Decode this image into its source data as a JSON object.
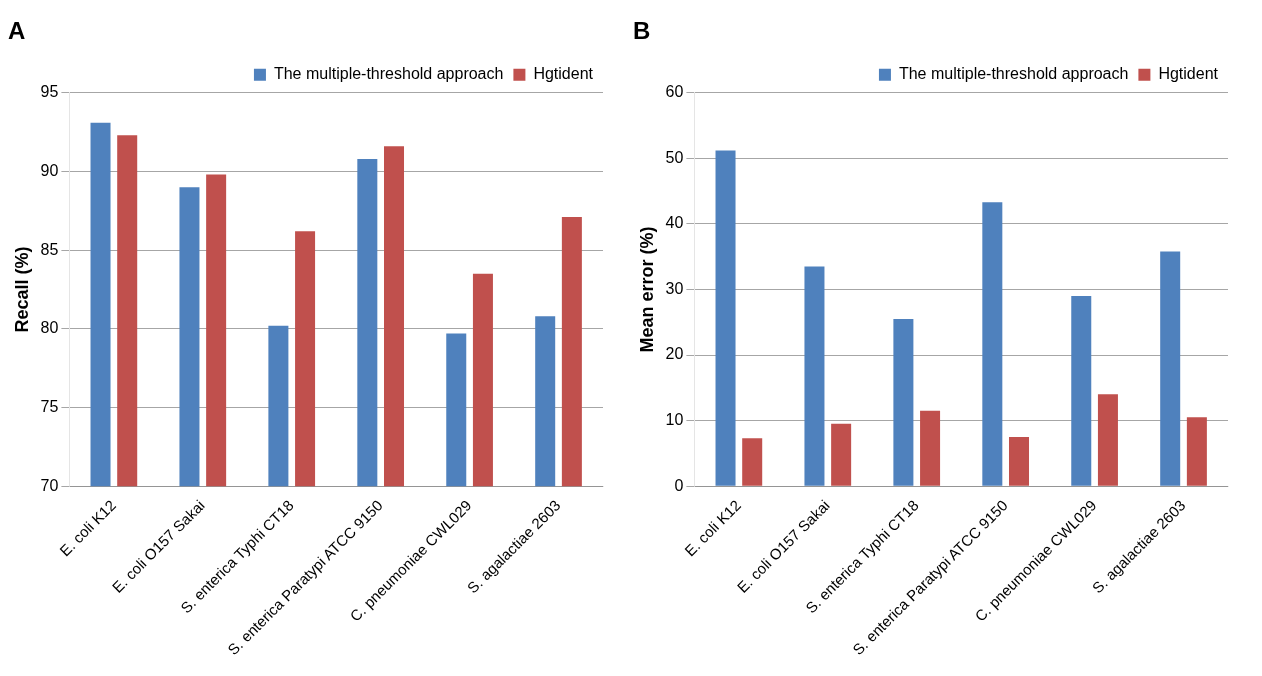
{
  "chart_data": [
    {
      "type": "bar",
      "title": "A",
      "ylabel": "Recall (%)",
      "categories": [
        "E. coli K12",
        "E. coli O157 Sakai",
        "S. enterica Typhi CT18",
        "S. enterica Paratypi ATCC 9150",
        "C. pneumoniae CWL029",
        "S. agalactiae 2603"
      ],
      "series": [
        {
          "name": "The multiple-threshold approach",
          "color": "#4f81bd",
          "values": [
            93.1,
            89.0,
            80.2,
            90.8,
            79.7,
            80.8
          ]
        },
        {
          "name": "Hgtident",
          "color": "#c0504d",
          "values": [
            92.3,
            89.8,
            86.2,
            91.6,
            83.5,
            87.1
          ]
        }
      ],
      "ylim": [
        70,
        95
      ],
      "yticks": [
        70,
        75,
        80,
        85,
        90,
        95
      ],
      "grid": "y",
      "legend": "top right"
    },
    {
      "type": "bar",
      "title": "B",
      "ylabel": "Mean error (%)",
      "categories": [
        "E. coli K12",
        "E. coli O157 Sakai",
        "S. enterica Typhi CT18",
        "S. enterica Paratypi ATCC 9150",
        "C. pneumoniae CWL029",
        "S. agalactiae 2603"
      ],
      "series": [
        {
          "name": "The multiple-threshold approach",
          "color": "#4f81bd",
          "values": [
            51.2,
            33.5,
            25.5,
            43.3,
            29,
            35.8
          ]
        },
        {
          "name": "Hgtident",
          "color": "#c0504d",
          "values": [
            7.3,
            9.5,
            11.5,
            7.5,
            14,
            10.5
          ]
        }
      ],
      "ylim": [
        0,
        60
      ],
      "yticks": [
        0,
        10,
        20,
        30,
        40,
        50,
        60
      ],
      "grid": "y",
      "legend": "top right"
    }
  ]
}
